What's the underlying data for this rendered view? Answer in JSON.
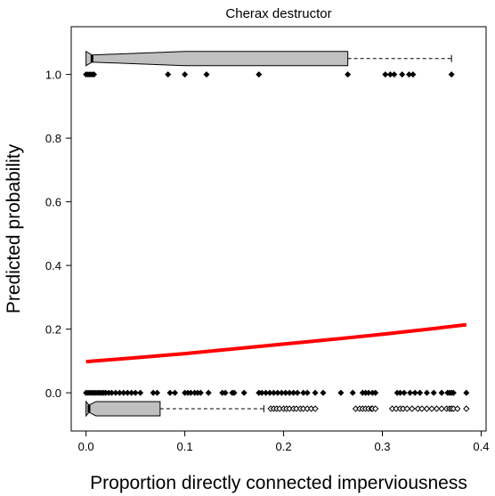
{
  "chart_data": {
    "type": "scatter",
    "title": "Cherax destructor",
    "xlabel": "Proportion directly connected imperviousness",
    "ylabel": "Predicted probability",
    "xlim": [
      -0.015,
      0.405
    ],
    "ylim": [
      -0.12,
      1.15
    ],
    "x_ticks": [
      0.0,
      0.1,
      0.2,
      0.3,
      0.4
    ],
    "x_tick_labels": [
      "0.0",
      "0.1",
      "0.2",
      "0.3",
      "0.4"
    ],
    "y_ticks": [
      0.0,
      0.2,
      0.4,
      0.6,
      0.8,
      1.0
    ],
    "y_tick_labels": [
      "0.0",
      "0.2",
      "0.4",
      "0.6",
      "0.8",
      "1.0"
    ],
    "colors": {
      "curve": "#ff0000",
      "box_fill": "#c0c0c0",
      "points": "#000000"
    },
    "fitted_curve": {
      "x": [
        0.0,
        0.05,
        0.1,
        0.15,
        0.2,
        0.25,
        0.3,
        0.35,
        0.385
      ],
      "y": [
        0.098,
        0.11,
        0.123,
        0.138,
        0.153,
        0.168,
        0.184,
        0.201,
        0.214
      ]
    },
    "present_points": {
      "y": 1.0,
      "x": [
        0.0,
        0.002,
        0.004,
        0.006,
        0.008,
        0.083,
        0.1,
        0.122,
        0.175,
        0.265,
        0.303,
        0.308,
        0.312,
        0.32,
        0.327,
        0.331,
        0.37
      ]
    },
    "absent_points": {
      "y": 0.0,
      "x": [
        0.0,
        0.002,
        0.004,
        0.006,
        0.008,
        0.01,
        0.012,
        0.014,
        0.016,
        0.018,
        0.02,
        0.023,
        0.026,
        0.03,
        0.034,
        0.038,
        0.042,
        0.046,
        0.05,
        0.055,
        0.068,
        0.072,
        0.085,
        0.09,
        0.1,
        0.103,
        0.106,
        0.11,
        0.113,
        0.116,
        0.124,
        0.138,
        0.141,
        0.148,
        0.15,
        0.16,
        0.175,
        0.178,
        0.182,
        0.186,
        0.19,
        0.194,
        0.198,
        0.202,
        0.206,
        0.21,
        0.214,
        0.22,
        0.224,
        0.232,
        0.24,
        0.258,
        0.27,
        0.28,
        0.283,
        0.286,
        0.29,
        0.293,
        0.315,
        0.318,
        0.322,
        0.328,
        0.333,
        0.338,
        0.345,
        0.352,
        0.36,
        0.366,
        0.368,
        0.37,
        0.372,
        0.385
      ]
    },
    "boxplot_present": {
      "y": 1.05,
      "min": 0.0,
      "q1": 0.0,
      "median": 0.006,
      "q3": 0.265,
      "whisker_high": 0.37,
      "notch_low": 0.0,
      "notch_high": 0.1,
      "outliers": []
    },
    "boxplot_absent": {
      "y": -0.05,
      "min": 0.0,
      "q1": 0.0,
      "median": 0.003,
      "q3": 0.075,
      "whisker_high": 0.18,
      "notch_low": 0.0,
      "notch_high": 0.01,
      "outliers": [
        0.187,
        0.19,
        0.193,
        0.196,
        0.2,
        0.203,
        0.206,
        0.21,
        0.213,
        0.217,
        0.22,
        0.224,
        0.228,
        0.232,
        0.273,
        0.277,
        0.28,
        0.283,
        0.286,
        0.289,
        0.29,
        0.293,
        0.31,
        0.314,
        0.318,
        0.321,
        0.325,
        0.33,
        0.336,
        0.34,
        0.345,
        0.35,
        0.355,
        0.36,
        0.365,
        0.368,
        0.37,
        0.372,
        0.376,
        0.385
      ]
    }
  }
}
